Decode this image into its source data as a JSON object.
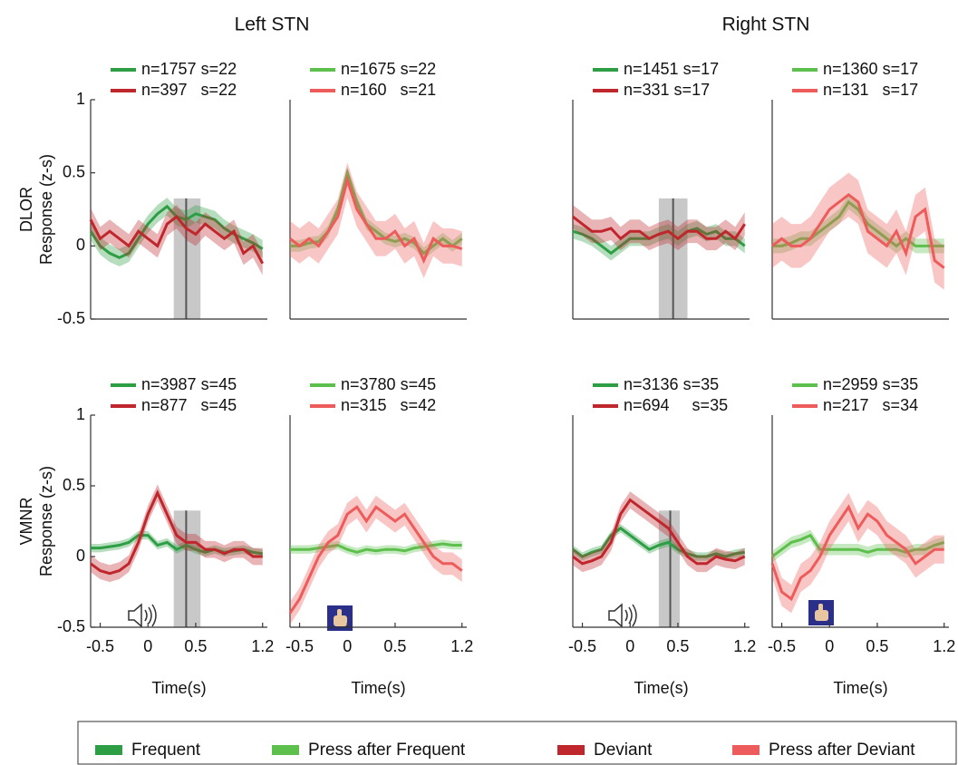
{
  "column_titles": [
    "Left STN",
    "Right STN"
  ],
  "legend": [
    {
      "name": "Frequent",
      "color": "#2e9e44"
    },
    {
      "name": "Press after Frequent",
      "color": "#5dbf4c"
    },
    {
      "name": "Deviant",
      "color": "#c0272d"
    },
    {
      "name": "Press after Deviant",
      "color": "#ee5b5b"
    }
  ],
  "chart_data": [
    {
      "type": "line",
      "ylabel": [
        "DLOR",
        "Response (z-s)"
      ],
      "xlim": [
        -0.6,
        1.25
      ],
      "ylim": [
        -0.5,
        1
      ],
      "yticks": [
        1,
        0.5,
        0,
        -0.5
      ],
      "shade": [
        0.27,
        0.55
      ],
      "marker": 0.4,
      "x": [
        -0.6,
        -0.5,
        -0.4,
        -0.3,
        -0.2,
        -0.1,
        0,
        0.1,
        0.2,
        0.3,
        0.4,
        0.5,
        0.6,
        0.7,
        0.8,
        0.9,
        1,
        1.1,
        1.2
      ],
      "series": [
        {
          "label": "n=1757 s=22",
          "color": "#2e9e44",
          "error": 0.06,
          "values": [
            0.1,
            0,
            -0.05,
            -0.08,
            -0.05,
            0.05,
            0.15,
            0.22,
            0.27,
            0.2,
            0.18,
            0.22,
            0.2,
            0.18,
            0.12,
            0.08,
            0.05,
            0.02,
            -0.02
          ]
        },
        {
          "label": "n=397   s=22",
          "color": "#c0272d",
          "error": 0.08,
          "values": [
            0.18,
            0.05,
            0.1,
            0.05,
            0,
            0.1,
            0.05,
            0,
            0.15,
            0.2,
            0.12,
            0.08,
            0.15,
            0.1,
            0.05,
            0.1,
            -0.05,
            0,
            -0.12
          ]
        }
      ]
    },
    {
      "type": "line",
      "xlim": [
        -0.6,
        1.25
      ],
      "ylim": [
        -0.5,
        1
      ],
      "x": [
        -0.6,
        -0.5,
        -0.4,
        -0.3,
        -0.2,
        -0.1,
        0,
        0.1,
        0.2,
        0.3,
        0.4,
        0.5,
        0.6,
        0.7,
        0.8,
        0.9,
        1,
        1.1,
        1.2
      ],
      "series": [
        {
          "label": "n=1675 s=22",
          "color": "#5dbf4c",
          "error": 0.04,
          "values": [
            0,
            0,
            0.02,
            0.03,
            0.1,
            0.25,
            0.5,
            0.3,
            0.15,
            0.1,
            0.05,
            0.03,
            0.05,
            0.02,
            -0.05,
            0,
            0.05,
            0,
            0.05
          ]
        },
        {
          "label": "n=160   s=21",
          "color": "#ee5b5b",
          "error": 0.12,
          "values": [
            0.05,
            0,
            0.05,
            0,
            0.1,
            0.2,
            0.45,
            0.25,
            0.15,
            0.05,
            0.05,
            0.1,
            0,
            0.05,
            -0.1,
            0.05,
            0,
            0,
            -0.02
          ]
        }
      ]
    },
    {
      "type": "line",
      "xlim": [
        -0.6,
        1.25
      ],
      "ylim": [
        -0.5,
        1
      ],
      "shade": [
        0.3,
        0.6
      ],
      "marker": 0.45,
      "x": [
        -0.6,
        -0.5,
        -0.4,
        -0.3,
        -0.2,
        -0.1,
        0,
        0.1,
        0.2,
        0.3,
        0.4,
        0.5,
        0.6,
        0.7,
        0.8,
        0.9,
        1,
        1.1,
        1.2
      ],
      "series": [
        {
          "label": "n=1451 s=17",
          "color": "#2e9e44",
          "error": 0.05,
          "values": [
            0.1,
            0.08,
            0.05,
            0,
            -0.05,
            0,
            0.05,
            0.05,
            0.05,
            0.08,
            0.1,
            0.05,
            0.1,
            0.12,
            0.08,
            0.1,
            0.05,
            0.05,
            0
          ]
        },
        {
          "label": "n=331 s=17",
          "color": "#c0272d",
          "error": 0.08,
          "values": [
            0.2,
            0.15,
            0.1,
            0.1,
            0.12,
            0.05,
            0.1,
            0.1,
            0.05,
            0.08,
            0.1,
            0.05,
            0.1,
            0.1,
            0.05,
            0.05,
            0.1,
            0.05,
            0.15
          ]
        }
      ]
    },
    {
      "type": "line",
      "xlim": [
        -0.6,
        1.25
      ],
      "ylim": [
        -0.5,
        1
      ],
      "x": [
        -0.6,
        -0.5,
        -0.4,
        -0.3,
        -0.2,
        -0.1,
        0,
        0.1,
        0.2,
        0.3,
        0.4,
        0.5,
        0.6,
        0.7,
        0.8,
        0.9,
        1,
        1.1,
        1.2
      ],
      "series": [
        {
          "label": "n=1360 s=17",
          "color": "#5dbf4c",
          "error": 0.05,
          "values": [
            0,
            0,
            0.02,
            0.05,
            0.05,
            0.1,
            0.15,
            0.2,
            0.3,
            0.25,
            0.15,
            0.1,
            0.05,
            0,
            0.05,
            0,
            0,
            0,
            0
          ]
        },
        {
          "label": "n=131   s=17",
          "color": "#ee5b5b",
          "error": 0.15,
          "values": [
            0,
            0.05,
            0,
            0,
            0.05,
            0.15,
            0.25,
            0.3,
            0.35,
            0.3,
            0.1,
            0.05,
            0,
            0.1,
            -0.05,
            0.2,
            0.25,
            -0.1,
            -0.15
          ]
        }
      ]
    },
    {
      "type": "line",
      "ylabel": [
        "VMNR",
        "Response (z-s)"
      ],
      "xlabel": "Time(s)",
      "xlim": [
        -0.6,
        1.25
      ],
      "ylim": [
        -0.5,
        1
      ],
      "yticks": [
        1,
        0.5,
        0,
        -0.5
      ],
      "xticks": [
        -0.5,
        0,
        0.5,
        1.2
      ],
      "shade": [
        0.27,
        0.55
      ],
      "marker": 0.4,
      "x": [
        -0.6,
        -0.5,
        -0.4,
        -0.3,
        -0.2,
        -0.1,
        0,
        0.1,
        0.2,
        0.3,
        0.4,
        0.5,
        0.6,
        0.7,
        0.8,
        0.9,
        1,
        1.1,
        1.2
      ],
      "series": [
        {
          "label": "n=3987 s=45",
          "color": "#2e9e44",
          "error": 0.03,
          "values": [
            0.06,
            0.06,
            0.07,
            0.08,
            0.1,
            0.15,
            0.15,
            0.08,
            0.1,
            0.05,
            0.08,
            0.05,
            0.03,
            0.05,
            0.03,
            0.04,
            0.05,
            0.03,
            0.02
          ]
        },
        {
          "label": "n=877   s=45",
          "color": "#c0272d",
          "error": 0.06,
          "values": [
            -0.05,
            -0.1,
            -0.12,
            -0.1,
            -0.05,
            0.1,
            0.3,
            0.45,
            0.3,
            0.15,
            0.1,
            0.1,
            0.05,
            0.05,
            0.02,
            0.05,
            0.05,
            0,
            0
          ]
        }
      ]
    },
    {
      "type": "line",
      "xlabel": "Time(s)",
      "xlim": [
        -0.6,
        1.25
      ],
      "ylim": [
        -0.5,
        1
      ],
      "xticks": [
        -0.5,
        0,
        0.5,
        1.2
      ],
      "x": [
        -0.6,
        -0.5,
        -0.4,
        -0.3,
        -0.2,
        -0.1,
        0,
        0.1,
        0.2,
        0.3,
        0.4,
        0.5,
        0.6,
        0.7,
        0.8,
        0.9,
        1,
        1.1,
        1.2
      ],
      "series": [
        {
          "label": "n=3780 s=45",
          "color": "#5dbf4c",
          "error": 0.03,
          "values": [
            0.05,
            0.05,
            0.05,
            0.06,
            0.07,
            0.08,
            0.05,
            0.03,
            0.05,
            0.04,
            0.05,
            0.05,
            0.04,
            0.06,
            0.07,
            0.08,
            0.09,
            0.08,
            0.08
          ]
        },
        {
          "label": "n=315   s=42",
          "color": "#ee5b5b",
          "error": 0.08,
          "values": [
            -0.4,
            -0.3,
            -0.15,
            0,
            0.1,
            0.15,
            0.3,
            0.35,
            0.25,
            0.35,
            0.3,
            0.25,
            0.3,
            0.2,
            0.1,
            0,
            -0.05,
            -0.05,
            -0.1
          ]
        }
      ]
    },
    {
      "type": "line",
      "xlabel": "Time(s)",
      "xlim": [
        -0.6,
        1.25
      ],
      "ylim": [
        -0.5,
        1
      ],
      "xticks": [
        -0.5,
        0,
        0.5,
        1.2
      ],
      "shade": [
        0.3,
        0.52
      ],
      "marker": 0.42,
      "x": [
        -0.6,
        -0.5,
        -0.4,
        -0.3,
        -0.2,
        -0.1,
        0,
        0.1,
        0.2,
        0.3,
        0.4,
        0.5,
        0.6,
        0.7,
        0.8,
        0.9,
        1,
        1.1,
        1.2
      ],
      "series": [
        {
          "label": "n=3136 s=35",
          "color": "#2e9e44",
          "error": 0.03,
          "values": [
            0.05,
            0,
            0.03,
            0.05,
            0.15,
            0.2,
            0.15,
            0.1,
            0.05,
            0.08,
            0.1,
            0.05,
            0.02,
            0,
            0,
            0.02,
            0,
            0.02,
            0.03
          ]
        },
        {
          "label": "n=694     s=35",
          "color": "#c0272d",
          "error": 0.06,
          "values": [
            0,
            -0.05,
            -0.03,
            0,
            0.1,
            0.3,
            0.4,
            0.35,
            0.3,
            0.25,
            0.2,
            0.1,
            0,
            -0.05,
            -0.05,
            0,
            -0.02,
            -0.03,
            0
          ]
        }
      ]
    },
    {
      "type": "line",
      "xlabel": "Time(s)",
      "xlim": [
        -0.6,
        1.25
      ],
      "ylim": [
        -0.5,
        1
      ],
      "xticks": [
        -0.5,
        0,
        0.5,
        1.2
      ],
      "x": [
        -0.6,
        -0.5,
        -0.4,
        -0.3,
        -0.2,
        -0.1,
        0,
        0.1,
        0.2,
        0.3,
        0.4,
        0.5,
        0.6,
        0.7,
        0.8,
        0.9,
        1,
        1.1,
        1.2
      ],
      "series": [
        {
          "label": "n=2959 s=35",
          "color": "#5dbf4c",
          "error": 0.04,
          "values": [
            0,
            0.05,
            0.1,
            0.12,
            0.15,
            0.05,
            0.05,
            0.05,
            0.05,
            0.05,
            0.03,
            0.05,
            0.05,
            0.05,
            0.03,
            0.05,
            0.05,
            0.08,
            0.1
          ]
        },
        {
          "label": "n=217   s=34",
          "color": "#ee5b5b",
          "error": 0.1,
          "values": [
            -0.05,
            -0.25,
            -0.3,
            -0.15,
            -0.1,
            0,
            0.15,
            0.25,
            0.35,
            0.2,
            0.3,
            0.25,
            0.15,
            0.1,
            0.05,
            -0.05,
            0,
            0.05,
            0.05
          ]
        }
      ]
    }
  ]
}
